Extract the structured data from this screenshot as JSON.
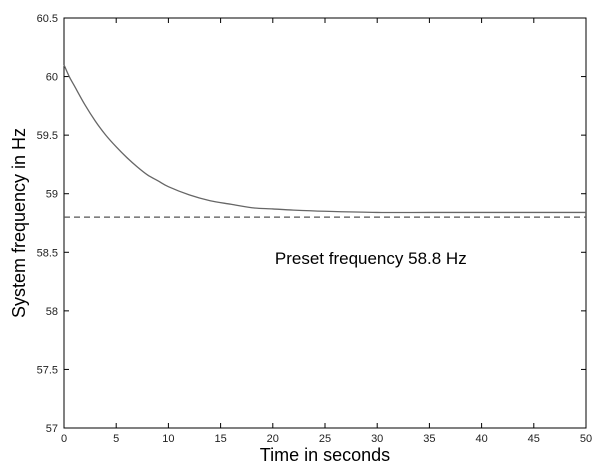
{
  "chart_data": {
    "type": "line",
    "xlabel": "Time in seconds",
    "ylabel": "System frequency in Hz",
    "xlim": [
      0,
      50
    ],
    "ylim": [
      57,
      60.5
    ],
    "xticks": [
      "0",
      "5",
      "10",
      "15",
      "20",
      "25",
      "30",
      "35",
      "40",
      "45",
      "50"
    ],
    "yticks": [
      "57",
      "57.5",
      "58",
      "58.5",
      "59",
      "59.5",
      "60",
      "60.5"
    ],
    "grid": false,
    "series": [
      {
        "style": "solid",
        "color": "#666666",
        "x": [
          0,
          0.5,
          1,
          2,
          3,
          4,
          5,
          6,
          7,
          8,
          9,
          10,
          12,
          14,
          16,
          18,
          20,
          22,
          25,
          30,
          35,
          40,
          45,
          50
        ],
        "y": [
          60.1,
          60.0,
          59.92,
          59.76,
          59.62,
          59.5,
          59.4,
          59.31,
          59.23,
          59.16,
          59.11,
          59.06,
          58.99,
          58.94,
          58.91,
          58.88,
          58.87,
          58.86,
          58.85,
          58.84,
          58.84,
          58.84,
          58.84,
          58.84
        ]
      },
      {
        "style": "dashed",
        "color": "#555555",
        "x": [
          0,
          50
        ],
        "y": [
          58.8,
          58.8
        ]
      }
    ],
    "annotations": [
      {
        "text": "Preset frequency 58.8 Hz",
        "x": 20.2,
        "y": 58.45
      }
    ]
  }
}
